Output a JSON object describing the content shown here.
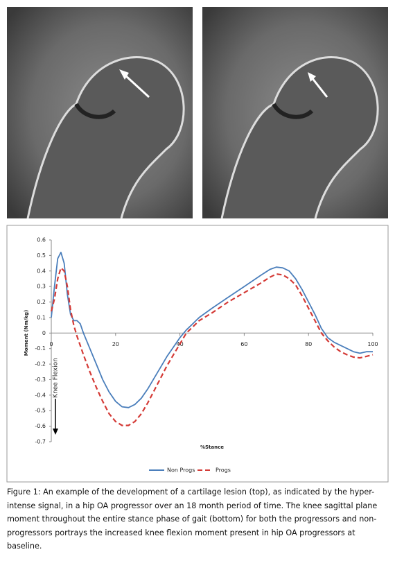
{
  "chart_data": {
    "type": "line",
    "y_label": "Moment (Nm/kg)",
    "x_label": "%Stance",
    "annotation": "Knee Flexion",
    "x": [
      0,
      1,
      2,
      3,
      4,
      5,
      6,
      7,
      8,
      9,
      10,
      12,
      14,
      16,
      18,
      20,
      22,
      24,
      26,
      28,
      30,
      32,
      34,
      36,
      38,
      40,
      42,
      44,
      46,
      50,
      55,
      60,
      65,
      68,
      70,
      72,
      74,
      76,
      78,
      80,
      82,
      84,
      86,
      88,
      90,
      92,
      94,
      96,
      98,
      100
    ],
    "series": [
      {
        "name": "Non Progs",
        "color": "#4a7ebb",
        "dashed": false,
        "values": [
          0.1,
          0.3,
          0.48,
          0.52,
          0.45,
          0.25,
          0.12,
          0.08,
          0.08,
          0.06,
          0.0,
          -0.1,
          -0.2,
          -0.3,
          -0.38,
          -0.44,
          -0.475,
          -0.48,
          -0.46,
          -0.42,
          -0.36,
          -0.29,
          -0.22,
          -0.15,
          -0.09,
          -0.03,
          0.02,
          0.06,
          0.1,
          0.16,
          0.23,
          0.3,
          0.37,
          0.41,
          0.425,
          0.42,
          0.4,
          0.35,
          0.28,
          0.2,
          0.12,
          0.03,
          -0.03,
          -0.06,
          -0.08,
          -0.1,
          -0.12,
          -0.13,
          -0.12,
          -0.12
        ]
      },
      {
        "name": "Progs",
        "color": "#d43a36",
        "dashed": true,
        "values": [
          0.14,
          0.22,
          0.35,
          0.42,
          0.4,
          0.3,
          0.15,
          0.05,
          -0.02,
          -0.08,
          -0.14,
          -0.25,
          -0.35,
          -0.44,
          -0.52,
          -0.57,
          -0.595,
          -0.595,
          -0.57,
          -0.52,
          -0.45,
          -0.37,
          -0.29,
          -0.21,
          -0.14,
          -0.07,
          0.0,
          0.04,
          0.08,
          0.13,
          0.2,
          0.26,
          0.32,
          0.36,
          0.38,
          0.375,
          0.35,
          0.31,
          0.24,
          0.16,
          0.08,
          0.0,
          -0.05,
          -0.09,
          -0.12,
          -0.14,
          -0.155,
          -0.16,
          -0.15,
          -0.14
        ]
      }
    ],
    "xlim": [
      0,
      100
    ],
    "xticks": [
      0,
      20,
      40,
      60,
      80,
      100
    ],
    "ylim": [
      -0.7,
      0.6
    ],
    "yticks": [
      -0.7,
      -0.6,
      -0.5,
      -0.4,
      -0.3,
      -0.2,
      -0.1,
      0,
      0.1,
      0.2,
      0.3,
      0.4,
      0.5,
      0.6
    ],
    "grid": false,
    "legend": "bottom"
  },
  "caption": "Figure 1: An example of the development of a cartilage lesion (top), as indicated by the hyper-intense signal, in a hip OA progressor over an 18 month period of time. The knee sagittal plane moment throughout the entire stance phase of gait (bottom) for both the progressors and non-progressors portrays the increased knee flexion moment present in hip OA progressors at baseline."
}
